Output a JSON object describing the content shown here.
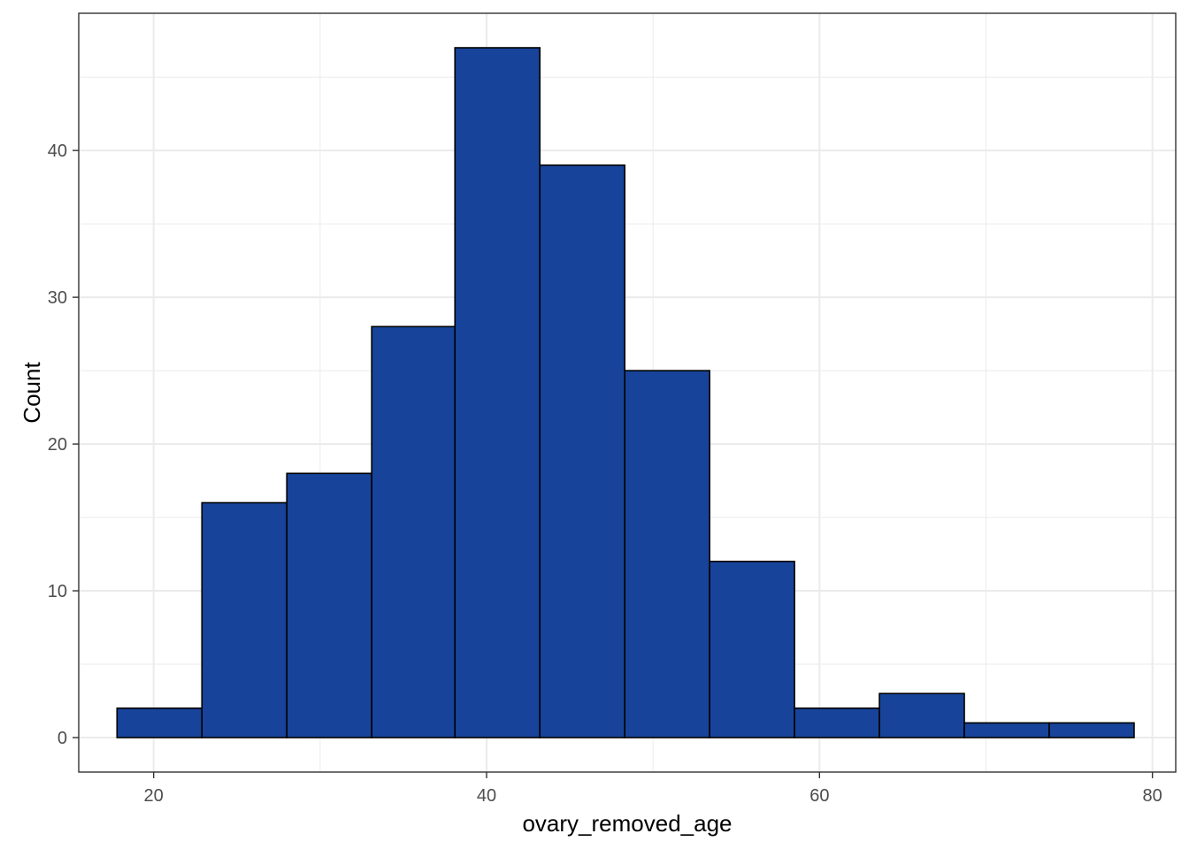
{
  "chart_data": {
    "type": "bar",
    "histogram": true,
    "xlabel": "ovary_removed_age",
    "ylabel": "Count",
    "xlim": [
      15.5,
      81.4
    ],
    "ylim": [
      -2.35,
      49.35
    ],
    "x_ticks": [
      20,
      40,
      60,
      80
    ],
    "y_ticks": [
      0,
      10,
      20,
      30,
      40
    ],
    "x_minor_ticks": [
      30,
      50,
      70
    ],
    "y_minor_ticks": [
      5,
      15,
      25,
      35,
      45
    ],
    "grid": true,
    "bins": [
      {
        "x0": 17.8,
        "x1": 22.9,
        "count": 2
      },
      {
        "x0": 22.9,
        "x1": 28.0,
        "count": 16
      },
      {
        "x0": 28.0,
        "x1": 33.1,
        "count": 18
      },
      {
        "x0": 33.1,
        "x1": 38.1,
        "count": 28
      },
      {
        "x0": 38.1,
        "x1": 43.2,
        "count": 47
      },
      {
        "x0": 43.2,
        "x1": 48.3,
        "count": 39
      },
      {
        "x0": 48.3,
        "x1": 53.4,
        "count": 25
      },
      {
        "x0": 53.4,
        "x1": 58.5,
        "count": 12
      },
      {
        "x0": 58.5,
        "x1": 63.6,
        "count": 2
      },
      {
        "x0": 63.6,
        "x1": 68.7,
        "count": 3
      },
      {
        "x0": 68.7,
        "x1": 73.8,
        "count": 1
      },
      {
        "x0": 73.8,
        "x1": 78.9,
        "count": 1
      }
    ],
    "colors": {
      "fill": "#17449a",
      "outline": "#000000",
      "grid": "#ebebeb",
      "panel_border": "#333333"
    }
  }
}
